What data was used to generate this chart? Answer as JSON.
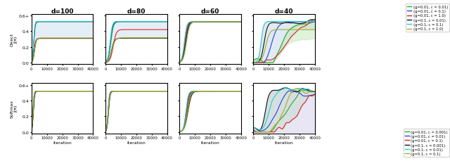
{
  "title_cols": [
    "d=100",
    "d=80",
    "d=60",
    "d=40"
  ],
  "row_labels": [
    "Direct",
    "Softmax"
  ],
  "xlabel": "iteration",
  "xlim": [
    0,
    40000
  ],
  "ylim": [
    0.0,
    0.62
  ],
  "yticks": [
    0.0,
    0.2,
    0.4,
    0.6
  ],
  "ytick_labels": [
    "0.0",
    "0.2",
    "0.4",
    "0.6+"
  ],
  "xticks": [
    0,
    10000,
    20000,
    30000,
    40000
  ],
  "direct_legend": [
    {
      "label": "(g=0.01, c = 0.01)",
      "color": "#22aa22"
    },
    {
      "label": "(g=0.01, c = 0.1)",
      "color": "#2244dd"
    },
    {
      "label": "(g=0.01, c = 1.0)",
      "color": "#dd2222"
    },
    {
      "label": "(g=0.1, c = 0.01)",
      "color": "#111111"
    },
    {
      "label": "(g=0.1, c = 0.1)",
      "color": "#22cccc"
    },
    {
      "label": "(g=0.1, c = 1.0)",
      "color": "#aaaa22"
    }
  ],
  "softmax_legend": [
    {
      "label": "(g=0.01, c = 0.001)",
      "color": "#22aa22"
    },
    {
      "label": "(g=0.01, c = 0.01)",
      "color": "#2244dd"
    },
    {
      "label": "(g=0.01, c = 0.1)",
      "color": "#dd2222"
    },
    {
      "label": "(g=0.1, c = 0.001)",
      "color": "#111111"
    },
    {
      "label": "(g=0.1, c = 0.01)",
      "color": "#22cccc"
    },
    {
      "label": "(g=0.1, c = 0.1)",
      "color": "#aaaa22"
    }
  ],
  "bg_blue": "#cfe0ef",
  "bg_green": "#c5e8bc",
  "bg_purple": "#ccc8e8"
}
